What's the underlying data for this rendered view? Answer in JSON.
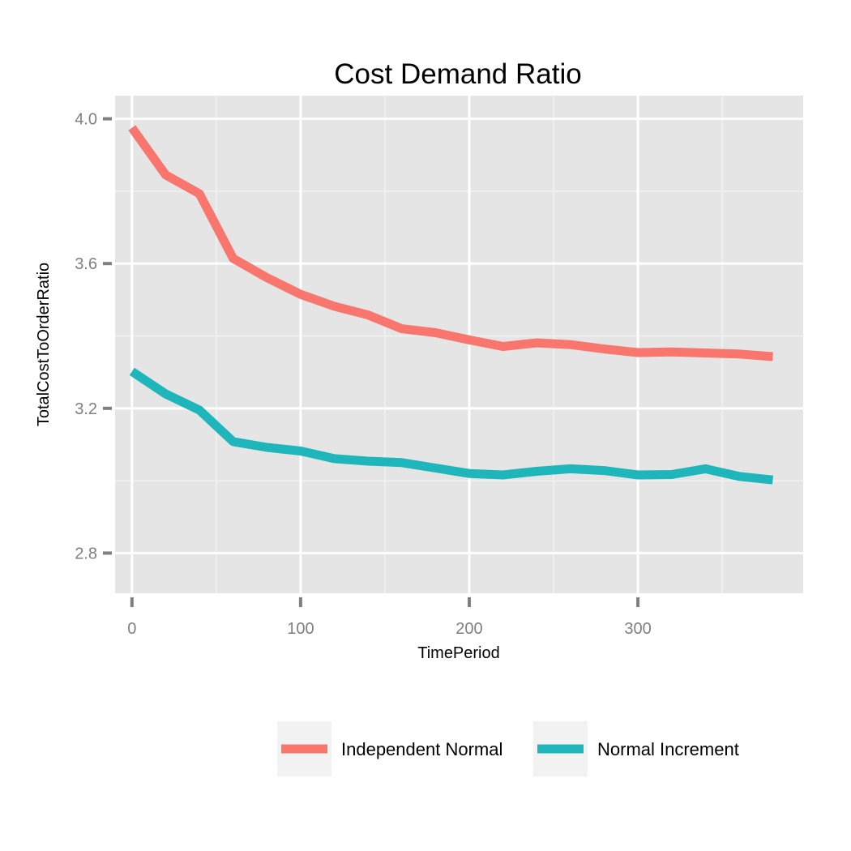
{
  "chart_data": {
    "type": "line",
    "title": "Cost Demand Ratio",
    "xlabel": "TimePeriod",
    "ylabel": "TotalCostToOrderRatio",
    "xlim": [
      -10,
      398
    ],
    "ylim": [
      2.689,
      4.064
    ],
    "x_ticks": [
      0,
      100,
      200,
      300
    ],
    "x_tick_labels": [
      "0",
      "100",
      "200",
      "300"
    ],
    "y_ticks": [
      2.8,
      3.2,
      3.6,
      4.0
    ],
    "y_tick_labels": [
      "2.8",
      "3.2",
      "3.6",
      "4.0"
    ],
    "grid": true,
    "legend_position": "bottom",
    "x": [
      0,
      20,
      40,
      60,
      80,
      100,
      120,
      140,
      160,
      180,
      200,
      220,
      240,
      260,
      280,
      300,
      320,
      340,
      360,
      380
    ],
    "series": [
      {
        "name": "Independent Normal",
        "color": "#F8766D",
        "values": [
          3.975,
          3.845,
          3.793,
          3.614,
          3.561,
          3.515,
          3.482,
          3.458,
          3.42,
          3.409,
          3.389,
          3.371,
          3.381,
          3.376,
          3.364,
          3.354,
          3.356,
          3.353,
          3.35,
          3.343
        ]
      },
      {
        "name": "Normal Increment",
        "color": "#1FB6BB",
        "values": [
          3.302,
          3.24,
          3.195,
          3.108,
          3.092,
          3.082,
          3.061,
          3.054,
          3.05,
          3.035,
          3.02,
          3.016,
          3.026,
          3.033,
          3.028,
          3.016,
          3.017,
          3.033,
          3.012,
          3.002
        ]
      }
    ]
  }
}
